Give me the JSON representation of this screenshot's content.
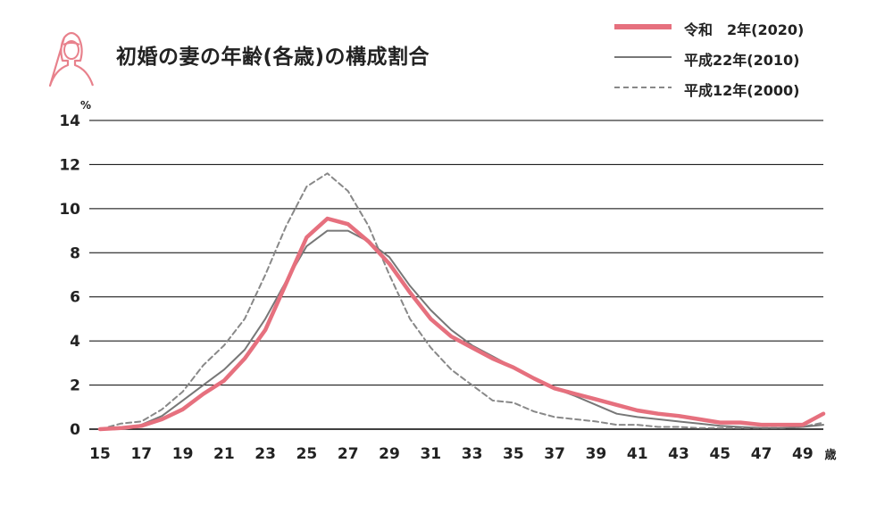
{
  "title": "初婚の妻の年齢(各歳)の構成割合",
  "colors": {
    "series_2020": "#e6707e",
    "series_2010": "#777777",
    "series_2000": "#888888",
    "grid": "#000000",
    "icon": "#e8818c"
  },
  "icon_name": "woman-avatar-icon",
  "chart_data": {
    "type": "line",
    "title": "初婚の妻の年齢(各歳)の構成割合",
    "y_unit_label": "%",
    "x_unit_label": "歳",
    "xlim": [
      15,
      50
    ],
    "ylim": [
      0,
      14
    ],
    "x_ticks": [
      15,
      17,
      19,
      21,
      23,
      25,
      27,
      29,
      31,
      33,
      35,
      37,
      39,
      41,
      43,
      45,
      47,
      49
    ],
    "y_ticks": [
      0,
      2,
      4,
      6,
      8,
      10,
      12,
      14
    ],
    "grid": true,
    "legend_position": "top-right",
    "x": [
      15,
      16,
      17,
      18,
      19,
      20,
      21,
      22,
      23,
      24,
      25,
      26,
      27,
      28,
      29,
      30,
      31,
      32,
      33,
      34,
      35,
      36,
      37,
      38,
      39,
      40,
      41,
      42,
      43,
      44,
      45,
      46,
      47,
      48,
      49,
      50
    ],
    "series": [
      {
        "name": "令和　2年(2020)",
        "style": "thick-solid",
        "values": [
          0,
          0.05,
          0.15,
          0.45,
          0.9,
          1.6,
          2.2,
          3.2,
          4.5,
          6.6,
          8.7,
          9.55,
          9.3,
          8.5,
          7.5,
          6.2,
          5.0,
          4.2,
          3.7,
          3.2,
          2.8,
          2.3,
          1.85,
          1.6,
          1.35,
          1.1,
          0.85,
          0.7,
          0.6,
          0.45,
          0.3,
          0.3,
          0.2,
          0.2,
          0.2,
          0.7
        ]
      },
      {
        "name": "平成22年(2010)",
        "style": "thin-solid",
        "values": [
          0,
          0.05,
          0.2,
          0.6,
          1.3,
          2.0,
          2.7,
          3.6,
          5.0,
          6.7,
          8.3,
          9.0,
          9.0,
          8.5,
          7.8,
          6.5,
          5.4,
          4.5,
          3.8,
          3.3,
          2.8,
          2.3,
          1.85,
          1.5,
          1.1,
          0.7,
          0.55,
          0.45,
          0.35,
          0.25,
          0.15,
          0.1,
          0.05,
          0.05,
          0.1,
          0.2
        ]
      },
      {
        "name": "平成12年(2000)",
        "style": "dashed",
        "values": [
          0,
          0.25,
          0.35,
          0.9,
          1.7,
          2.9,
          3.8,
          5.0,
          7.0,
          9.2,
          11.0,
          11.6,
          10.8,
          9.2,
          7.0,
          5.0,
          3.7,
          2.7,
          2.0,
          1.3,
          1.2,
          0.8,
          0.55,
          0.45,
          0.35,
          0.2,
          0.2,
          0.1,
          0.1,
          0.05,
          0.05,
          0.05,
          0.05,
          0.05,
          0.1,
          0.3
        ]
      }
    ]
  }
}
